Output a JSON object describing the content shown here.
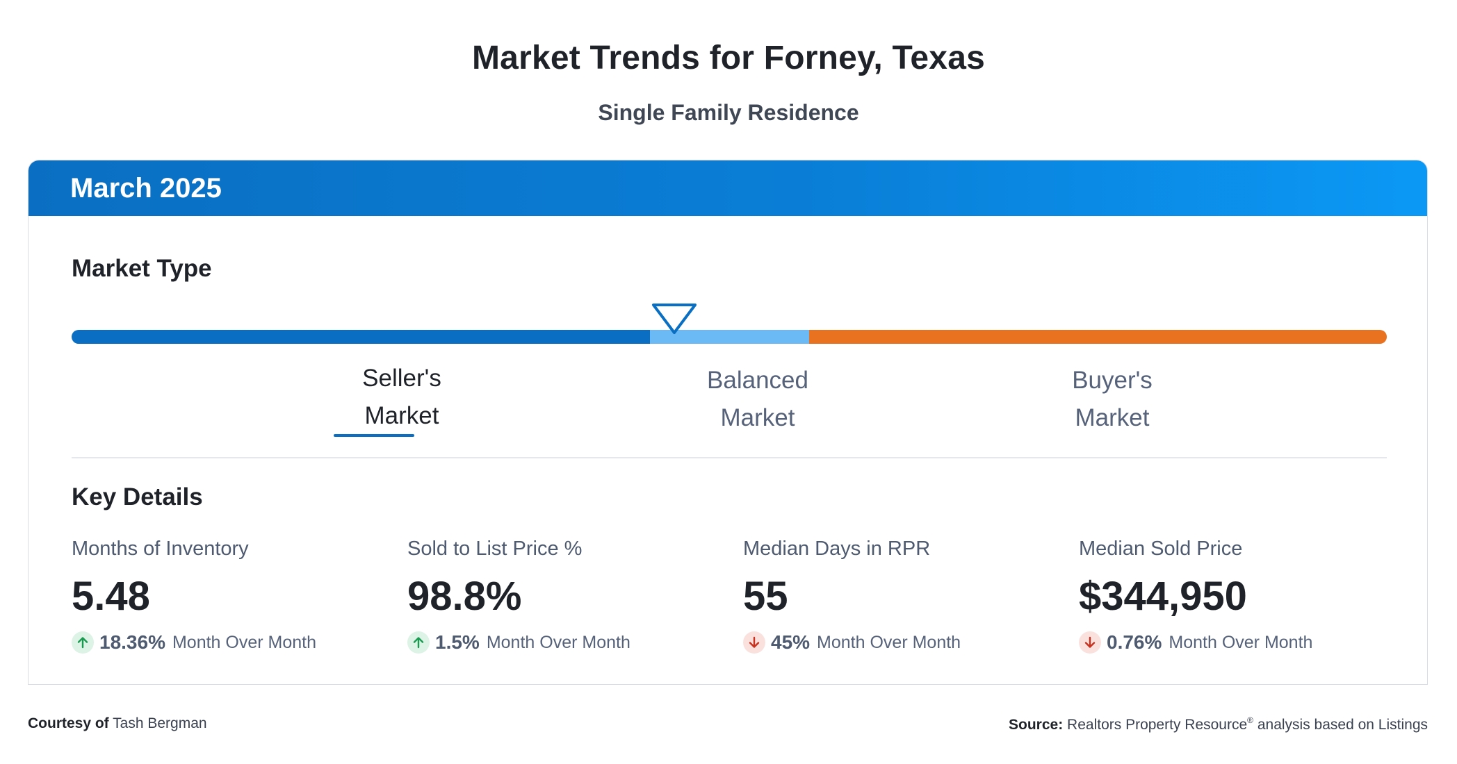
{
  "header": {
    "title": "Market Trends for Forney, Texas",
    "subtitle": "Single Family Residence"
  },
  "card": {
    "period": "March 2025",
    "market_type": {
      "title": "Market Type",
      "segments": [
        {
          "line1": "Seller's",
          "line2": "Market",
          "color": "#0a6fc2",
          "active": true
        },
        {
          "line1": "Balanced",
          "line2": "Market",
          "color": "#6cbaf5",
          "active": false
        },
        {
          "line1": "Buyer's",
          "line2": "Market",
          "color": "#e8721f",
          "active": false
        }
      ],
      "marker_color": "#0a6fc2"
    },
    "key_details": {
      "title": "Key Details",
      "metrics": [
        {
          "label": "Months of Inventory",
          "value": "5.48",
          "direction": "up",
          "change": "18.36%",
          "change_label": "Month Over Month"
        },
        {
          "label": "Sold to List Price %",
          "value": "98.8%",
          "direction": "up",
          "change": "1.5%",
          "change_label": "Month Over Month"
        },
        {
          "label": "Median Days in RPR",
          "value": "55",
          "direction": "down",
          "change": "45%",
          "change_label": "Month Over Month"
        },
        {
          "label": "Median Sold Price",
          "value": "$344,950",
          "direction": "down",
          "change": "0.76%",
          "change_label": "Month Over Month"
        }
      ]
    }
  },
  "footer": {
    "courtesy_label": "Courtesy of",
    "courtesy_name": "Tash Bergman",
    "source_label": "Source:",
    "source_text": "Realtors Property Resource",
    "source_mark": "®",
    "source_suffix": "analysis based on Listings"
  },
  "icons": {
    "up": "arrow-up-icon",
    "down": "arrow-down-icon"
  },
  "colors": {
    "header_gradient_start": "#0a6fc2",
    "header_gradient_end": "#0b98f5",
    "up_arrow": "#1a9a50",
    "down_arrow": "#c8321f"
  }
}
